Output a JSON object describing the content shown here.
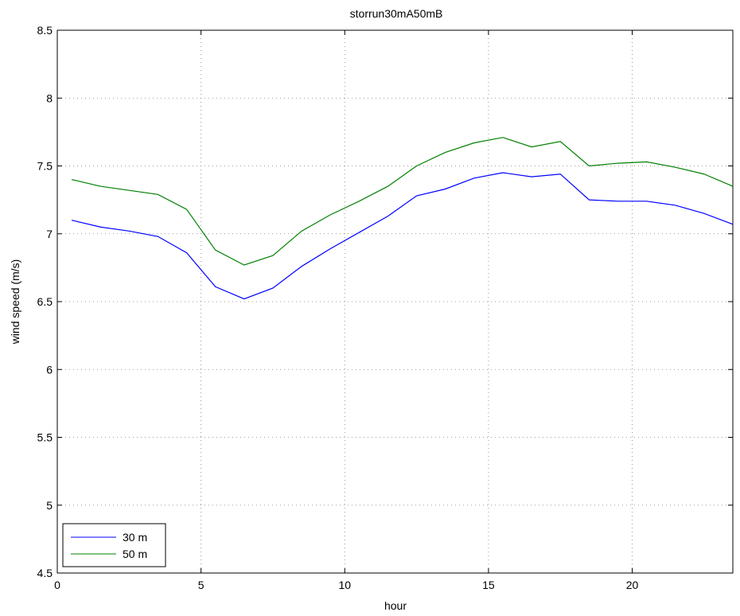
{
  "chart_data": {
    "type": "line",
    "title": "storrun30mA50mB",
    "xlabel": "hour",
    "ylabel": "wind speed (m/s)",
    "xlim": [
      0,
      23.5
    ],
    "ylim": [
      4.5,
      8.5
    ],
    "xticks": [
      0,
      5,
      10,
      15,
      20
    ],
    "yticks": [
      4.5,
      5,
      5.5,
      6,
      6.5,
      7,
      7.5,
      8,
      8.5
    ],
    "grid": true,
    "legend_position": "bottom-left",
    "x": [
      0.5,
      1.5,
      2.5,
      3.5,
      4.5,
      5.5,
      6.5,
      7.5,
      8.5,
      9.5,
      10.5,
      11.5,
      12.5,
      13.5,
      14.5,
      15.5,
      16.5,
      17.5,
      18.5,
      19.5,
      20.5,
      21.5,
      22.5,
      23.5
    ],
    "series": [
      {
        "name": "30 m",
        "color": "#0000ff",
        "values": [
          7.1,
          7.05,
          7.02,
          6.98,
          6.86,
          6.61,
          6.52,
          6.6,
          6.76,
          6.89,
          7.01,
          7.13,
          7.28,
          7.33,
          7.41,
          7.45,
          7.42,
          7.44,
          7.25,
          7.24,
          7.24,
          7.21,
          7.15,
          7.07
        ]
      },
      {
        "name": "50 m",
        "color": "#008000",
        "values": [
          7.4,
          7.35,
          7.32,
          7.29,
          7.18,
          6.88,
          6.77,
          6.84,
          7.02,
          7.14,
          7.24,
          7.35,
          7.5,
          7.6,
          7.67,
          7.71,
          7.64,
          7.68,
          7.5,
          7.52,
          7.53,
          7.49,
          7.44,
          7.35
        ]
      }
    ]
  }
}
